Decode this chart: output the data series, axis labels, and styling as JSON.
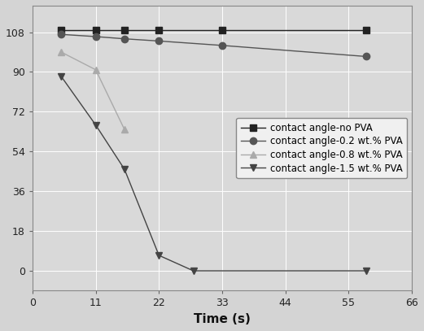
{
  "series": [
    {
      "label": "contact angle-no PVA",
      "x": [
        5,
        11,
        16,
        22,
        33,
        58
      ],
      "y": [
        109,
        109,
        109,
        109,
        109,
        109
      ],
      "color": "#222222",
      "marker": "s",
      "linestyle": "-",
      "markersize": 6,
      "linewidth": 1.0
    },
    {
      "label": "contact angle-0.2 wt.% PVA",
      "x": [
        5,
        11,
        16,
        22,
        33,
        58
      ],
      "y": [
        107,
        106,
        105,
        104,
        102,
        97
      ],
      "color": "#555555",
      "marker": "o",
      "linestyle": "-",
      "markersize": 6,
      "linewidth": 1.0
    },
    {
      "label": "contact angle-0.8 wt.% PVA",
      "x": [
        5,
        11,
        16
      ],
      "y": [
        99,
        91,
        64
      ],
      "color": "#aaaaaa",
      "marker": "^",
      "linestyle": "-",
      "markersize": 6,
      "linewidth": 1.0
    },
    {
      "label": "contact angle-1.5 wt.% PVA",
      "x": [
        5,
        11,
        16,
        22,
        28,
        58
      ],
      "y": [
        88,
        66,
        46,
        7,
        0,
        0
      ],
      "color": "#444444",
      "marker": "v",
      "linestyle": "-",
      "markersize": 6,
      "linewidth": 1.0
    }
  ],
  "xlabel": "Time (s)",
  "ylabel": "",
  "xlim": [
    0,
    66
  ],
  "ylim": [
    -9,
    120
  ],
  "xticks": [
    0,
    11,
    22,
    33,
    44,
    55,
    66
  ],
  "yticks": [
    0,
    18,
    36,
    54,
    72,
    90,
    108
  ],
  "legend_loc": "center right",
  "legend_fontsize": 8.5,
  "figsize": [
    5.21,
    4.07
  ],
  "dpi": 100,
  "figure_background": "#d4d4d4",
  "axes_background": "#d9d9d9",
  "grid_color": "#ffffff",
  "grid_linewidth": 0.7,
  "tick_fontsize": 9,
  "xlabel_fontsize": 11
}
